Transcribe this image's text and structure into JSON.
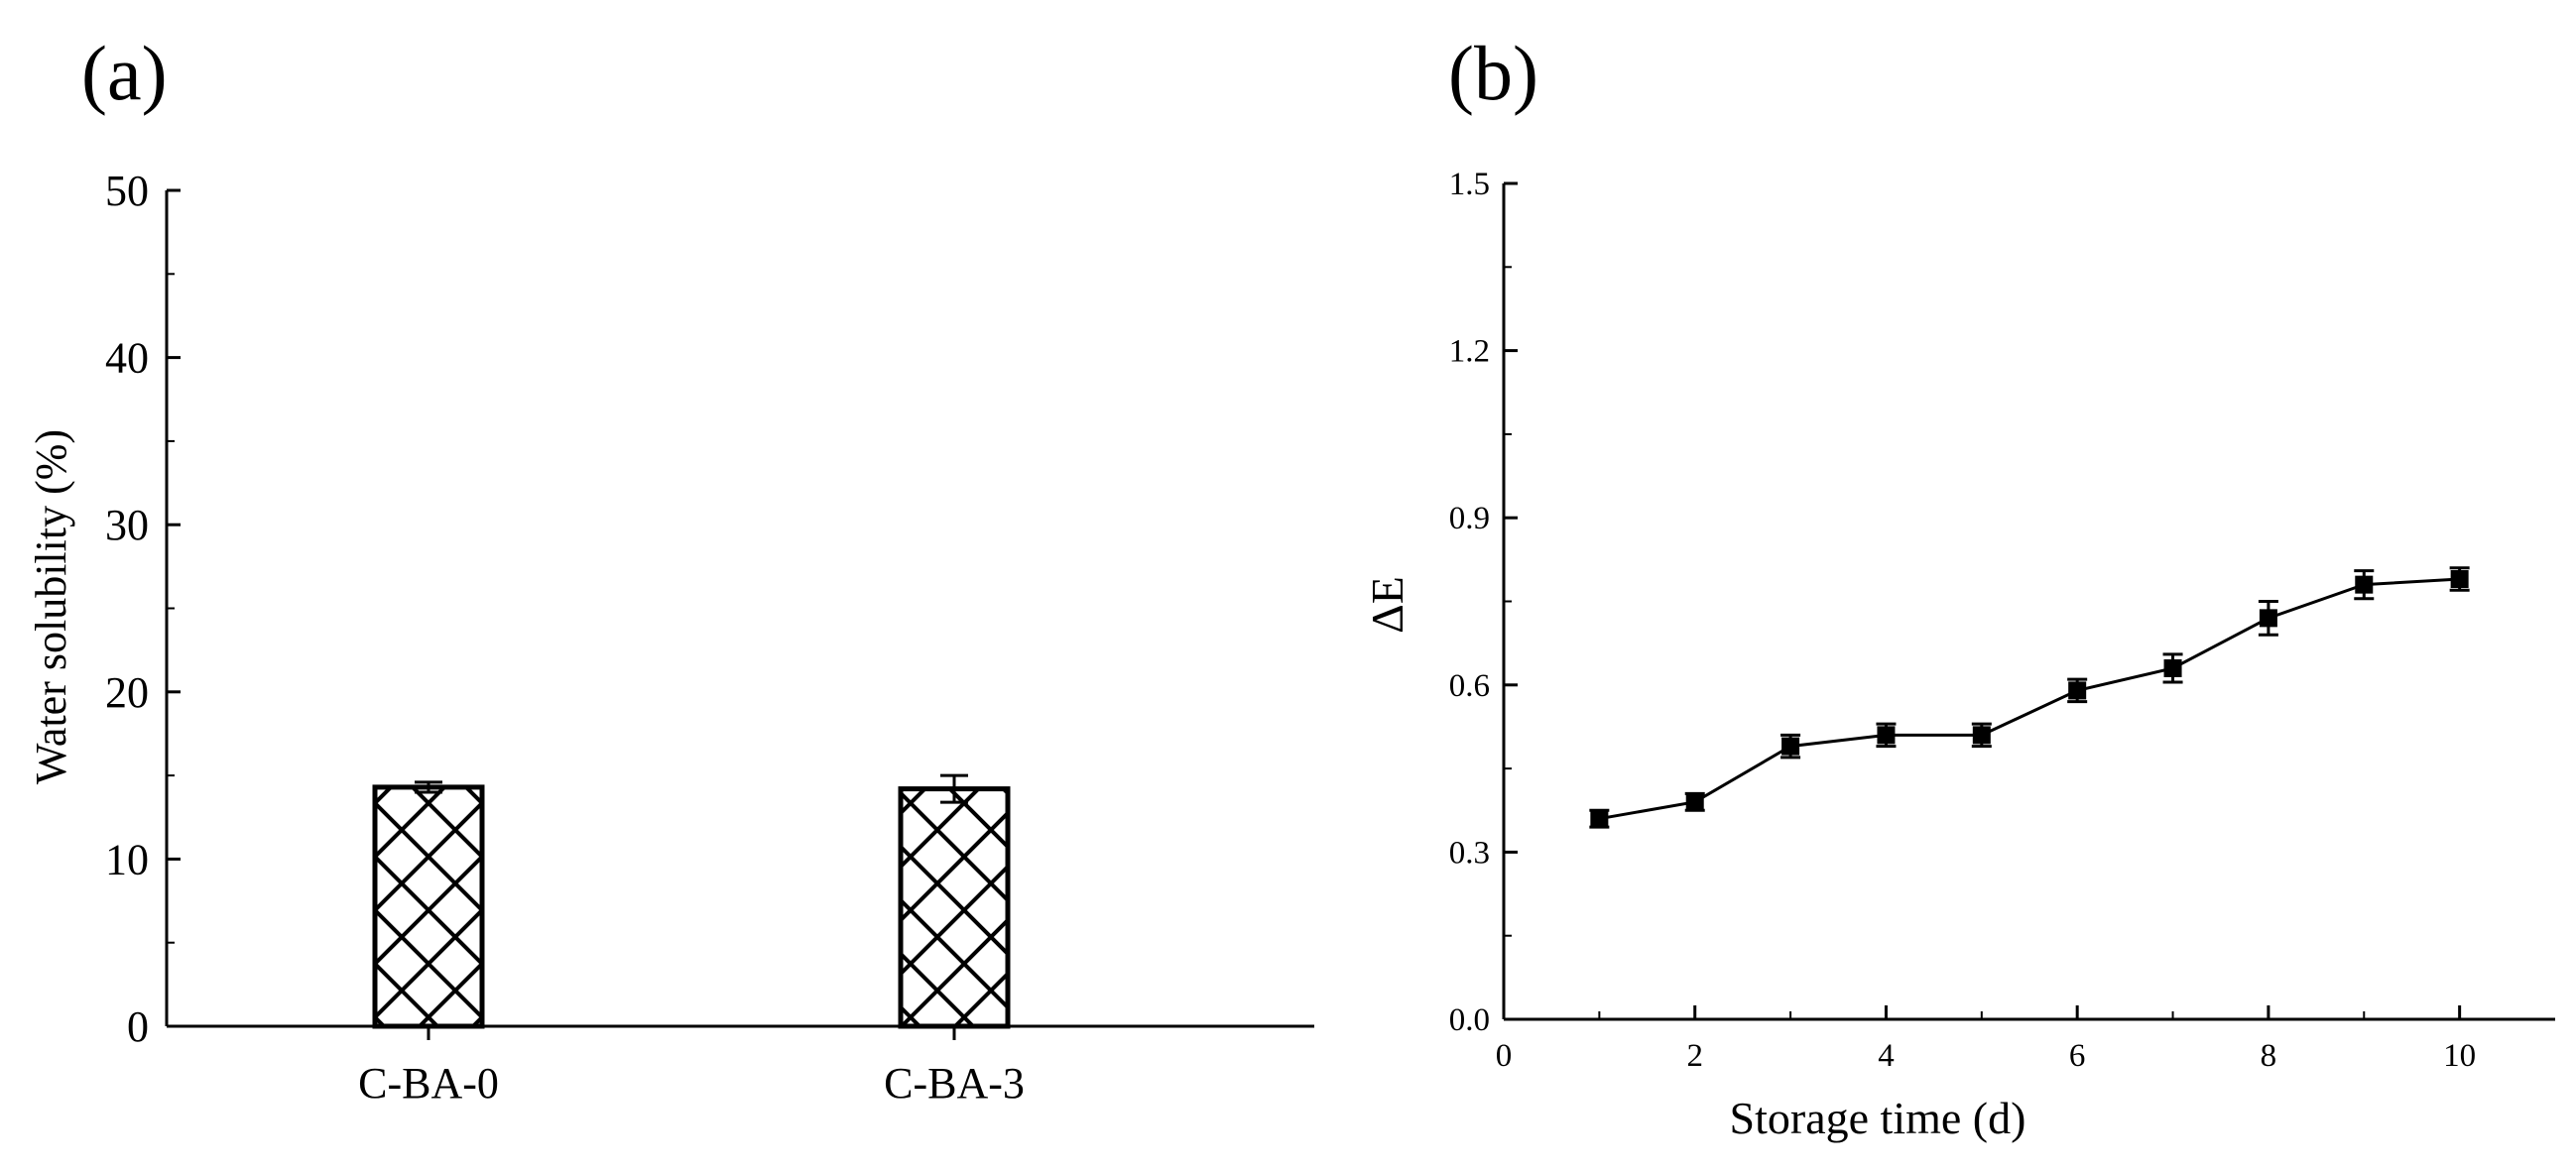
{
  "chart_data": [
    {
      "panel": "(a)",
      "type": "bar",
      "categories": [
        "C-BA-0",
        "C-BA-3"
      ],
      "values": [
        14.3,
        14.2
      ],
      "errors": [
        0.3,
        0.8
      ],
      "ylabel": "Water solubility (%)",
      "xlabel": "",
      "ylim": [
        0,
        50
      ],
      "yticks": [
        "0",
        "10",
        "20",
        "30",
        "40",
        "50"
      ],
      "yticks_values": [
        0,
        10,
        20,
        30,
        40,
        50
      ],
      "bar_fill": "crosshatch",
      "bar_color": "#000000",
      "grid": false
    },
    {
      "panel": "(b)",
      "type": "line",
      "x": [
        1,
        2,
        3,
        4,
        5,
        6,
        7,
        8,
        9,
        10
      ],
      "y": [
        0.36,
        0.39,
        0.49,
        0.51,
        0.51,
        0.59,
        0.63,
        0.72,
        0.78,
        0.79
      ],
      "errors": [
        0.015,
        0.015,
        0.02,
        0.02,
        0.02,
        0.02,
        0.025,
        0.03,
        0.025,
        0.02
      ],
      "xlabel": "Storage time (d)",
      "ylabel": "ΔE",
      "xlim": [
        0,
        11
      ],
      "ylim": [
        0.0,
        1.5
      ],
      "xticks": [
        "0",
        "2",
        "4",
        "6",
        "8",
        "10"
      ],
      "xticks_values": [
        0,
        2,
        4,
        6,
        8,
        10
      ],
      "yticks": [
        "0.0",
        "0.3",
        "0.6",
        "0.9",
        "1.2",
        "1.5"
      ],
      "yticks_values": [
        0.0,
        0.3,
        0.6,
        0.9,
        1.2,
        1.5
      ],
      "marker": "square",
      "line_color": "#000000",
      "grid": false
    }
  ]
}
